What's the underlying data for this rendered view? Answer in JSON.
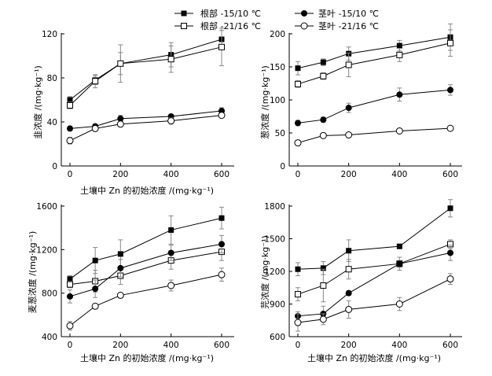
{
  "legend": {
    "placement": "top-center",
    "entries": [
      {
        "label": "根部 -15/10 ℃",
        "marker": "filled-square"
      },
      {
        "label": "根部 -21/16 ℃",
        "marker": "open-square"
      },
      {
        "label": "茎叶 -15/10 ℃",
        "marker": "filled-circle"
      },
      {
        "label": "茎叶 -21/16 ℃",
        "marker": "open-circle"
      }
    ]
  },
  "colors": {
    "axis": "#000000",
    "line": "#000000",
    "open_fill": "#ffffff",
    "errorbar": "#888888"
  },
  "chart_data": [
    {
      "type": "line",
      "title": "",
      "xlabel": "土壤中 Zn 的初始浓度 /(mg·kg⁻¹)",
      "ylabel": "韭浓度 /(mg·kg⁻¹)",
      "x": [
        0,
        100,
        200,
        400,
        600
      ],
      "xticks": [
        0,
        200,
        400,
        600
      ],
      "xtick_labels": [
        "0",
        "200",
        "400",
        "600"
      ],
      "ylim": [
        0,
        125
      ],
      "yticks": [
        0,
        40,
        80,
        120
      ],
      "ytick_labels": [
        "0",
        "40",
        "80",
        "120"
      ],
      "series": [
        {
          "name": "根部 -15/10 ℃",
          "values": [
            60,
            78,
            93,
            101,
            115
          ],
          "errors": [
            3,
            4,
            17,
            11,
            8
          ]
        },
        {
          "name": "根部 -21/16 ℃",
          "values": [
            55,
            77,
            93,
            97,
            108
          ],
          "errors": [
            3,
            6,
            10,
            12,
            17
          ]
        },
        {
          "name": "茎叶 -15/10 ℃",
          "values": [
            34,
            36,
            43,
            45,
            50
          ],
          "errors": [
            2,
            2,
            3,
            2,
            3
          ]
        },
        {
          "name": "茎叶 -21/16 ℃",
          "values": [
            23,
            34,
            38,
            41,
            46
          ],
          "errors": [
            3,
            2,
            2,
            3,
            2
          ]
        }
      ]
    },
    {
      "type": "line",
      "title": "",
      "xlabel": "",
      "ylabel": "葱浓度 /(mg·kg⁻¹)",
      "x": [
        0,
        100,
        200,
        400,
        600
      ],
      "xticks": [
        0,
        200,
        400,
        600
      ],
      "xtick_labels": [
        "0",
        "200",
        "400",
        "600"
      ],
      "ylim": [
        0,
        210
      ],
      "yticks": [
        0,
        50,
        100,
        150,
        200
      ],
      "ytick_labels": [
        "0",
        "50",
        "100",
        "150",
        "200"
      ],
      "series": [
        {
          "name": "根部 -15/10 ℃",
          "values": [
            148,
            157,
            170,
            182,
            195
          ],
          "errors": [
            10,
            5,
            10,
            8,
            20
          ]
        },
        {
          "name": "根部 -21/16 ℃",
          "values": [
            124,
            136,
            153,
            168,
            186
          ],
          "errors": [
            5,
            5,
            18,
            10,
            20
          ]
        },
        {
          "name": "茎叶 -15/10 ℃",
          "values": [
            65,
            70,
            88,
            108,
            115
          ],
          "errors": [
            4,
            4,
            7,
            10,
            8
          ]
        },
        {
          "name": "茎叶 -21/16 ℃",
          "values": [
            35,
            46,
            47,
            53,
            57
          ],
          "errors": [
            4,
            4,
            3,
            3,
            3
          ]
        }
      ]
    },
    {
      "type": "line",
      "title": "",
      "xlabel": "土壤中 Zn 的初始浓度 /(mg·kg⁻¹)",
      "ylabel": "麦葱浓度 /(mg·kg⁻¹)",
      "x": [
        0,
        100,
        200,
        400,
        600
      ],
      "xticks": [
        0,
        200,
        400,
        600
      ],
      "xtick_labels": [
        "0",
        "200",
        "400",
        "600"
      ],
      "ylim": [
        400,
        1600
      ],
      "yticks": [
        400,
        800,
        1200,
        1600
      ],
      "ytick_labels": [
        "400",
        "800",
        "1200",
        "1600"
      ],
      "series": [
        {
          "name": "根部 -15/10 ℃",
          "values": [
            930,
            1100,
            1160,
            1380,
            1490
          ],
          "errors": [
            30,
            120,
            130,
            130,
            100
          ]
        },
        {
          "name": "根部 -21/16 ℃",
          "values": [
            880,
            910,
            960,
            1100,
            1180
          ],
          "errors": [
            30,
            100,
            80,
            80,
            80
          ]
        },
        {
          "name": "茎叶 -15/10 ℃",
          "values": [
            770,
            840,
            1030,
            1170,
            1250
          ],
          "errors": [
            60,
            80,
            80,
            70,
            80
          ]
        },
        {
          "name": "茎叶 -21/16 ℃",
          "values": [
            500,
            680,
            780,
            870,
            970
          ],
          "errors": [
            40,
            20,
            20,
            50,
            60
          ]
        }
      ]
    },
    {
      "type": "line",
      "title": "",
      "xlabel": "土壤中 Zn 的初始浓度 /(mg·kg⁻¹)",
      "ylabel": "芫浓度 /(mg·kg⁻¹)",
      "x": [
        0,
        100,
        200,
        400,
        600
      ],
      "xticks": [
        0,
        200,
        400,
        600
      ],
      "xtick_labels": [
        "0",
        "200",
        "400",
        "600"
      ],
      "ylim": [
        600,
        1880
      ],
      "yticks": [
        600,
        900,
        1200,
        1500,
        1800
      ],
      "ytick_labels": [
        "600",
        "900",
        "1200",
        "1500",
        "1800"
      ],
      "series": [
        {
          "name": "根部 -15/10 ℃",
          "values": [
            1220,
            1230,
            1390,
            1430,
            1780
          ],
          "errors": [
            60,
            60,
            100,
            10,
            80
          ]
        },
        {
          "name": "根部 -21/16 ℃",
          "values": [
            990,
            1070,
            1220,
            1270,
            1450
          ],
          "errors": [
            60,
            150,
            90,
            30,
            40
          ]
        },
        {
          "name": "茎叶 -15/10 ℃",
          "values": [
            790,
            810,
            1000,
            1270,
            1370
          ],
          "errors": [
            40,
            70,
            20,
            60,
            70
          ]
        },
        {
          "name": "茎叶 -21/16 ℃",
          "values": [
            730,
            760,
            850,
            900,
            1130
          ],
          "errors": [
            80,
            50,
            80,
            60,
            50
          ]
        }
      ]
    }
  ]
}
